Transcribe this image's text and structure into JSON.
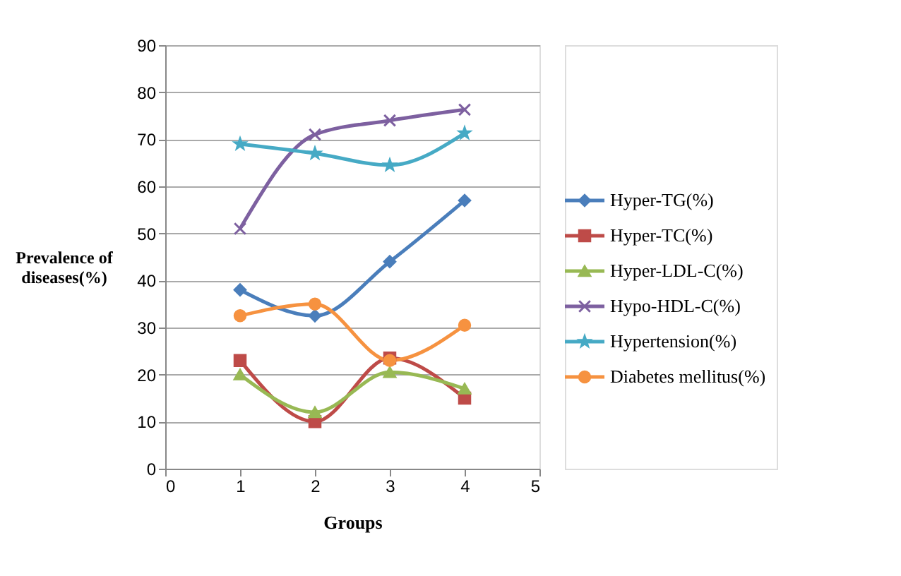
{
  "chart_data": {
    "type": "line",
    "xlabel": "Groups",
    "ylabel": "Prevalence of diseases(%)",
    "x": [
      1,
      2,
      3,
      4
    ],
    "xlim": [
      0,
      5
    ],
    "xticks": [
      0,
      1,
      2,
      3,
      4,
      5
    ],
    "ylim": [
      0,
      90
    ],
    "yticks": [
      0,
      10,
      20,
      30,
      40,
      50,
      60,
      70,
      80,
      90
    ],
    "grid": "y",
    "legend": "right",
    "series": [
      {
        "name": "Hyper-TG(%)",
        "color": "#4a7ebb",
        "marker": "diamond",
        "values": [
          38,
          32.5,
          44,
          57
        ]
      },
      {
        "name": "Hyper-TC(%)",
        "color": "#be4b48",
        "marker": "square",
        "values": [
          23,
          10,
          23.5,
          15
        ]
      },
      {
        "name": "Hyper-LDL-C(%)",
        "color": "#98b954",
        "marker": "triangle",
        "values": [
          20,
          12,
          20.5,
          17
        ]
      },
      {
        "name": "Hypo-HDL-C(%)",
        "color": "#7d60a0",
        "marker": "cross",
        "values": [
          51,
          71,
          74,
          76.3
        ]
      },
      {
        "name": "Hypertension(%)",
        "color": "#46aac5",
        "marker": "star",
        "values": [
          69,
          67,
          64.5,
          71.3
        ]
      },
      {
        "name": "Diabetes mellitus(%)",
        "color": "#f69240",
        "marker": "circle",
        "values": [
          32.5,
          35,
          23,
          30.5
        ]
      }
    ]
  }
}
